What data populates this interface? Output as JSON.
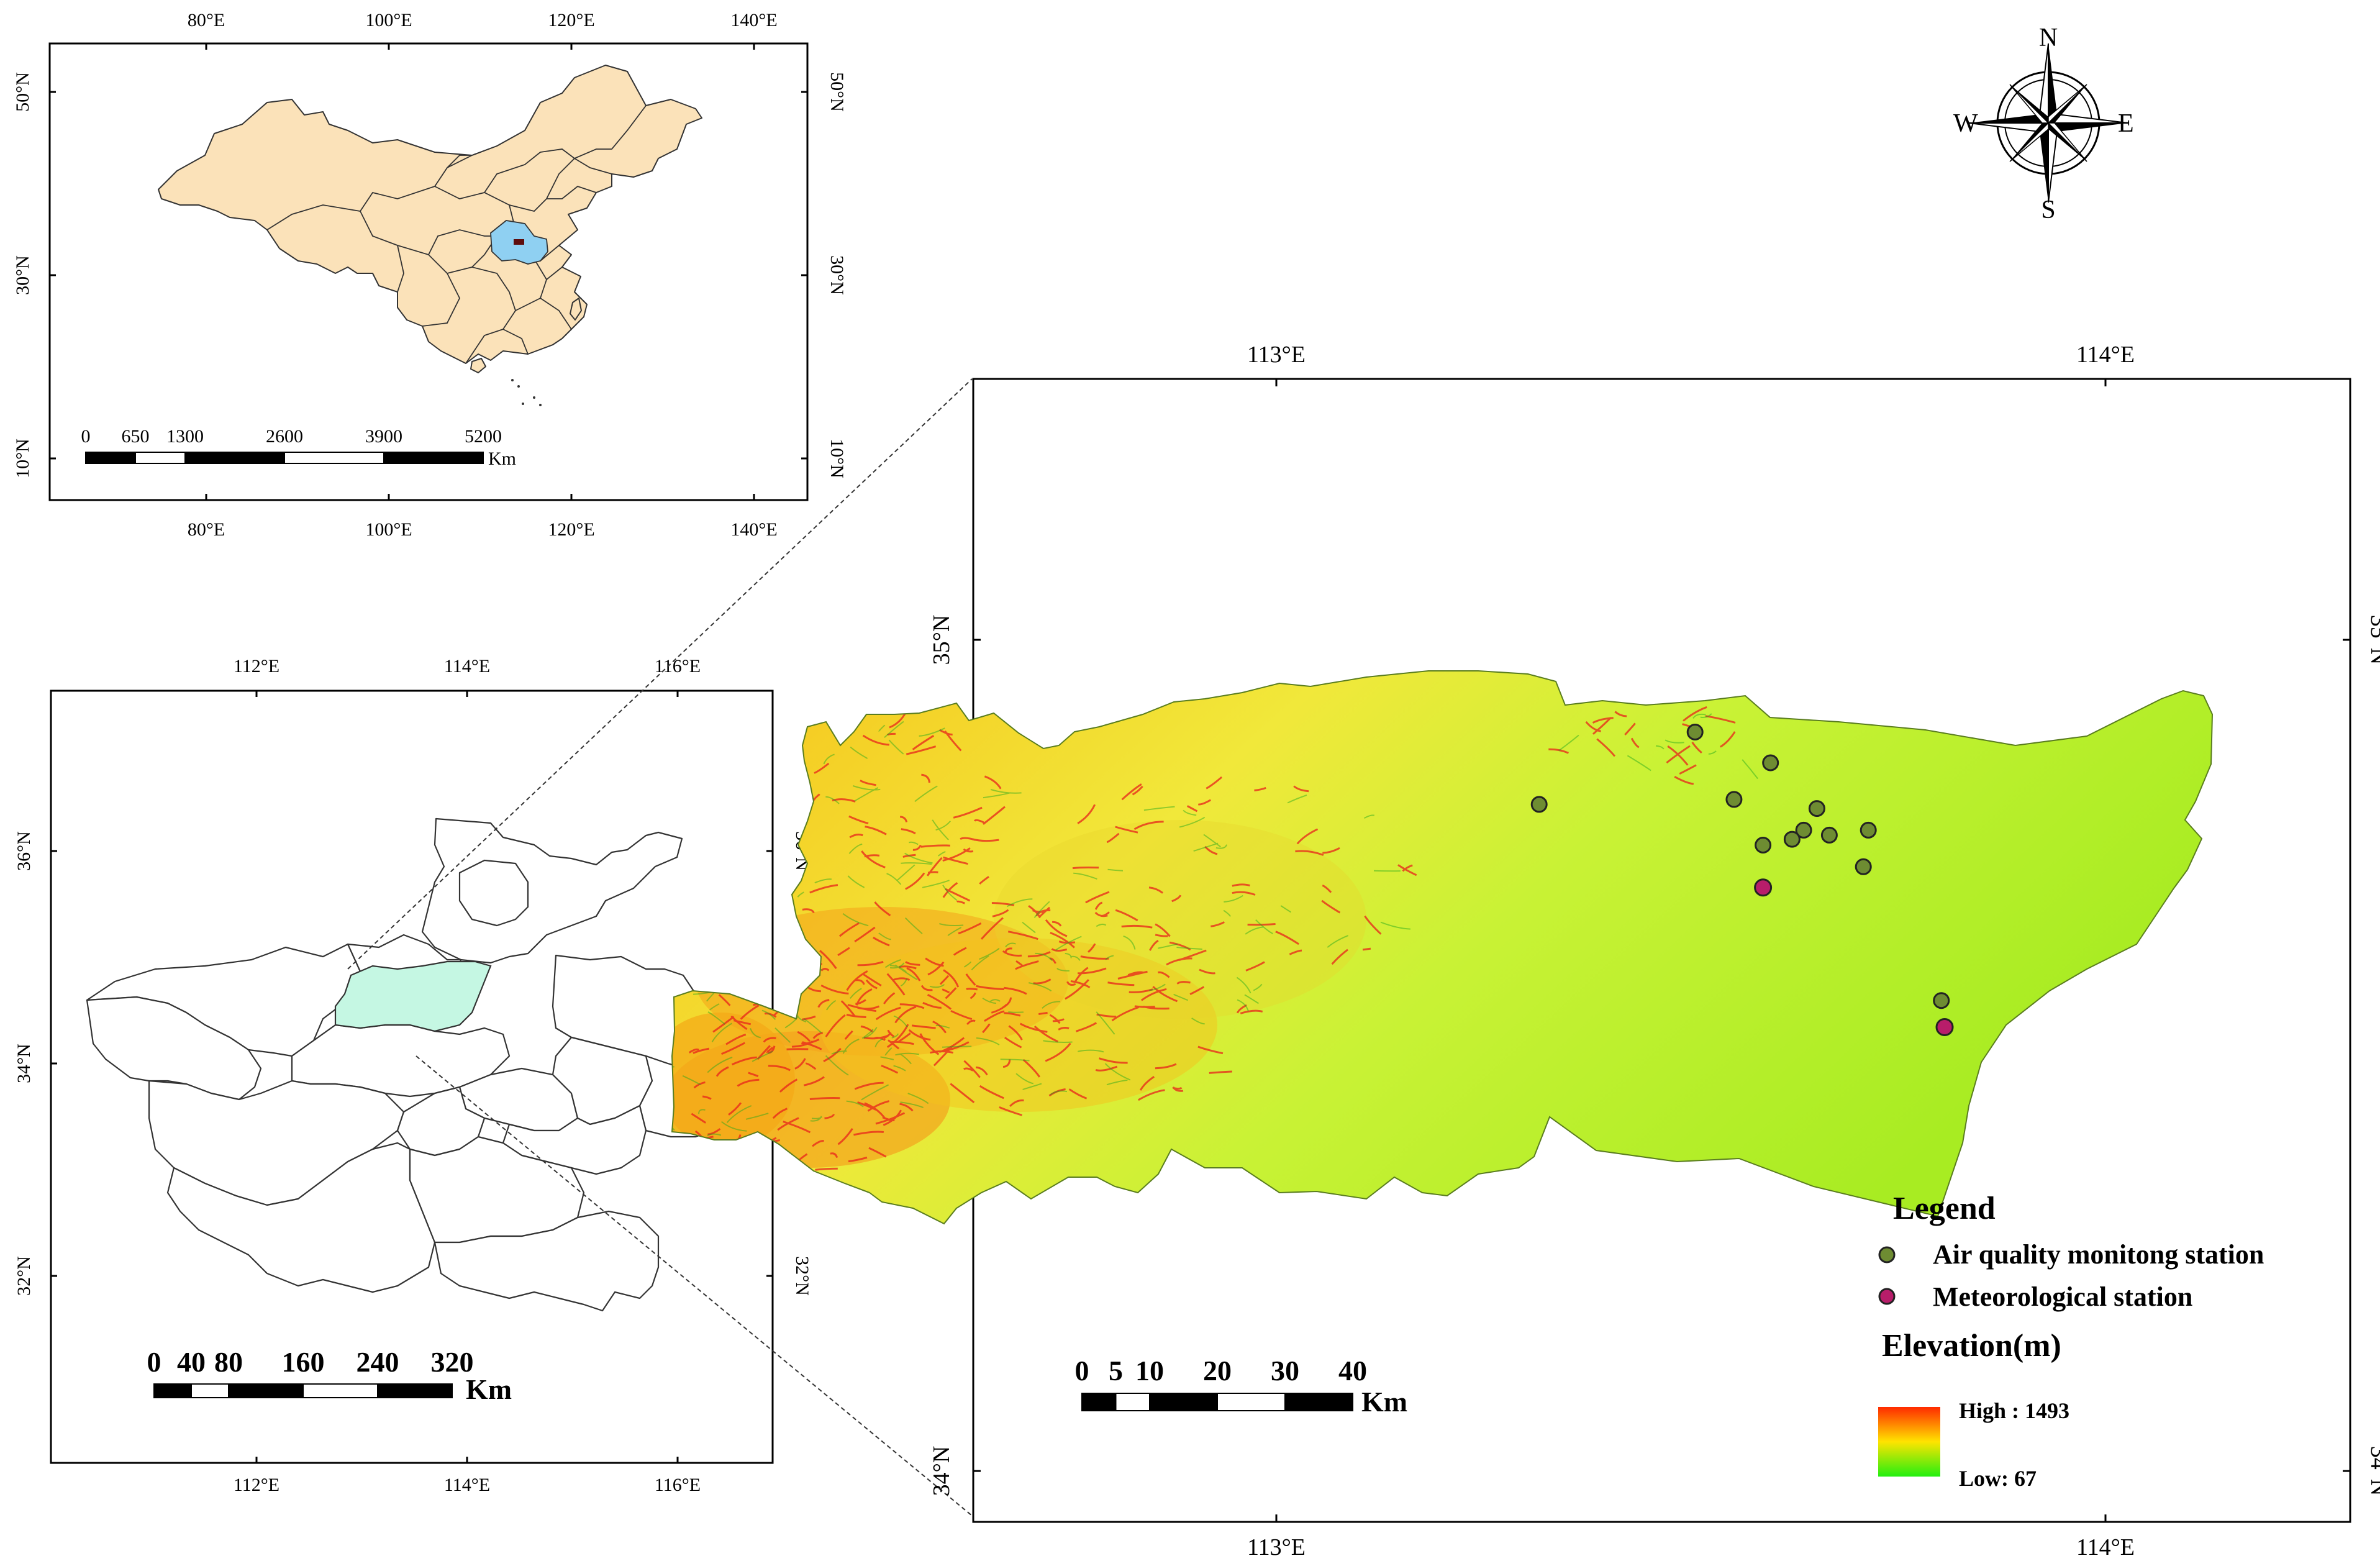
{
  "china_map": {
    "lon_labels": [
      "80°E",
      "100°E",
      "120°E",
      "140°E"
    ],
    "lat_labels": [
      "50°N",
      "30°N",
      "10°N"
    ],
    "highlight_color": "#8fd0f2",
    "fill_color": "#fbe2b9",
    "scale_numbers": [
      "0",
      "650",
      "1300",
      "2600",
      "3900",
      "5200"
    ],
    "scale_unit": "Km"
  },
  "henan_map": {
    "lon_labels": [
      "112°E",
      "114°E",
      "116°E"
    ],
    "lat_labels": [
      "36°N",
      "34°N",
      "32°N"
    ],
    "highlight_color": "#c5f7e3",
    "scale_numbers": [
      "0",
      "40",
      "80",
      "160",
      "240",
      "320"
    ],
    "scale_unit": "Km"
  },
  "detail_map": {
    "lon_labels": [
      "113°E",
      "114°E"
    ],
    "lat_labels": [
      "35°N",
      "34°N"
    ],
    "scale_numbers": [
      "0",
      "5",
      "10",
      "20",
      "30",
      "40"
    ],
    "scale_unit": "Km",
    "air_stations": [
      {
        "lon": 113.505,
        "lat": 34.889
      },
      {
        "lon": 113.596,
        "lat": 34.852
      },
      {
        "lon": 113.317,
        "lat": 34.802
      },
      {
        "lon": 113.552,
        "lat": 34.808
      },
      {
        "lon": 113.652,
        "lat": 34.797
      },
      {
        "lon": 113.714,
        "lat": 34.771
      },
      {
        "lon": 113.636,
        "lat": 34.771
      },
      {
        "lon": 113.667,
        "lat": 34.765
      },
      {
        "lon": 113.622,
        "lat": 34.76
      },
      {
        "lon": 113.587,
        "lat": 34.753
      },
      {
        "lon": 113.708,
        "lat": 34.727
      },
      {
        "lon": 113.802,
        "lat": 34.566
      }
    ],
    "met_stations": [
      {
        "lon": 113.587,
        "lat": 34.702
      },
      {
        "lon": 113.806,
        "lat": 34.534
      }
    ],
    "air_color": "#6e8c32",
    "met_color": "#b81d6a"
  },
  "compass": {
    "n": "N",
    "s": "S",
    "e": "E",
    "w": "W"
  },
  "legend": {
    "title": "Legend",
    "air_label": "Air quality monitong station",
    "met_label": "Meteorological station",
    "elevation_title": "Elevation(m)",
    "high_label": "High : 1493",
    "low_label": "Low: 67",
    "ramp_colors": [
      "#ff2a00",
      "#ffe400",
      "#22ef10"
    ]
  }
}
